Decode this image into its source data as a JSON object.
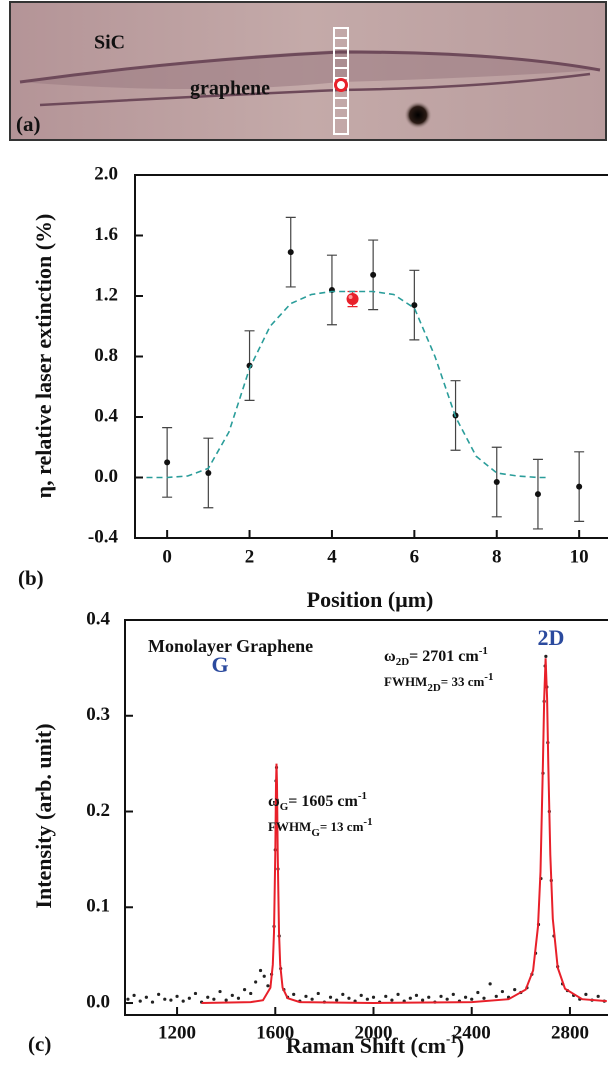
{
  "panel_a": {
    "labels": [
      "SiC",
      "graphene"
    ],
    "tag": "(a)"
  },
  "chart_data": [
    {
      "type": "scatter",
      "panel_label": "(b)",
      "x_label": "Position (μm)",
      "y_label": "η, relative laser extinction (%)",
      "xlim": [
        -0.78,
        10.7
      ],
      "xticks": [
        0,
        2,
        4,
        6,
        8,
        10
      ],
      "ylim": [
        -0.4,
        2.0
      ],
      "yticks": [
        -0.4,
        {
          "value": 0,
          "label": "0.0"
        },
        0.4,
        0.8,
        1.2,
        1.6,
        {
          "value": 2,
          "label": "2.0"
        }
      ],
      "series": [
        {
          "mode": "markers",
          "color": "#111111",
          "x": [
            0,
            1,
            2,
            3,
            4,
            5,
            6,
            7,
            8,
            9,
            10
          ],
          "values": [
            0.1,
            0.03,
            0.74,
            1.49,
            1.24,
            1.34,
            1.14,
            0.41,
            -0.03,
            -0.11,
            -0.06
          ],
          "errors": [
            0.23,
            0.23,
            0.23,
            0.23,
            0.23,
            0.23,
            0.23,
            0.23,
            0.23,
            0.23,
            0.23
          ]
        },
        {
          "mode": "markers",
          "color": "#e8202a",
          "x": [
            4.5
          ],
          "values": [
            1.18
          ],
          "errors": [
            0.05
          ]
        },
        {
          "mode": "dashed-line",
          "color": "#2a9d9a",
          "x": [
            -0.5,
            0,
            0.5,
            1,
            1.5,
            2,
            2.5,
            3,
            3.5,
            4,
            4.5,
            5,
            5.5,
            6,
            6.5,
            7,
            7.5,
            8,
            8.5,
            9,
            9.2
          ],
          "values": [
            0,
            0,
            0.01,
            0.06,
            0.3,
            0.72,
            1.0,
            1.15,
            1.21,
            1.23,
            1.23,
            1.23,
            1.21,
            1.12,
            0.8,
            0.4,
            0.14,
            0.03,
            0.01,
            0,
            0
          ]
        }
      ]
    },
    {
      "type": "scatter",
      "panel_label": "(c)",
      "x_label": [
        "Raman Shift (cm",
        "-1",
        ")"
      ],
      "y_label": "Intensity  (arb. unit)",
      "xlim": [
        988,
        2955
      ],
      "xticks": [
        1200,
        1600,
        2000,
        2400,
        2800
      ],
      "ylim": [
        -0.0125,
        0.4
      ],
      "yticks": [
        {
          "value": 0,
          "label": "0.0"
        },
        0.1,
        0.2,
        0.3,
        0.4
      ],
      "annotations": [
        {
          "parts": [
            "Monolayer Graphene"
          ]
        },
        {
          "parts": [
            "G"
          ]
        },
        {
          "parts": [
            "2D"
          ]
        },
        {
          "parts": [
            "ω",
            "G",
            "= 1605 cm",
            "-1"
          ]
        },
        {
          "parts": [
            "FWHM",
            "G",
            "= 13 cm",
            "-1"
          ]
        },
        {
          "parts": [
            "ω",
            "2D",
            "= 2701 cm",
            "-1"
          ]
        },
        {
          "parts": [
            "FWHM",
            "2D",
            "= 33 cm",
            "-1"
          ]
        }
      ],
      "series": [
        {
          "mode": "dots",
          "color": "#222222",
          "x": [
            1000,
            1025,
            1050,
            1075,
            1100,
            1125,
            1150,
            1175,
            1200,
            1225,
            1250,
            1275,
            1300,
            1325,
            1350,
            1375,
            1400,
            1425,
            1450,
            1475,
            1500,
            1520,
            1540,
            1555,
            1570,
            1585,
            1595,
            1600,
            1603,
            1605,
            1608,
            1611,
            1616,
            1622,
            1635,
            1650,
            1675,
            1700,
            1725,
            1750,
            1775,
            1800,
            1825,
            1850,
            1875,
            1900,
            1925,
            1950,
            1975,
            2000,
            2025,
            2050,
            2075,
            2100,
            2125,
            2150,
            2175,
            2200,
            2225,
            2250,
            2275,
            2300,
            2325,
            2350,
            2375,
            2400,
            2425,
            2450,
            2475,
            2500,
            2525,
            2550,
            2575,
            2600,
            2625,
            2645,
            2660,
            2672,
            2682,
            2690,
            2695,
            2699,
            2702,
            2706,
            2710,
            2716,
            2724,
            2735,
            2750,
            2770,
            2790,
            2815,
            2840,
            2865,
            2890,
            2915,
            2940
          ],
          "values": [
            0.004,
            0.008,
            0.002,
            0.006,
            0.001,
            0.009,
            0.004,
            0.003,
            0.007,
            0.002,
            0.005,
            0.01,
            0.001,
            0.006,
            0.004,
            0.012,
            0.003,
            0.008,
            0.005,
            0.014,
            0.01,
            0.022,
            0.034,
            0.028,
            0.018,
            0.03,
            0.08,
            0.16,
            0.232,
            0.246,
            0.212,
            0.14,
            0.07,
            0.036,
            0.014,
            0.006,
            0.009,
            0.002,
            0.007,
            0.004,
            0.01,
            0.001,
            0.006,
            0.003,
            0.009,
            0.005,
            0.002,
            0.008,
            0.004,
            0.006,
            0.001,
            0.007,
            0.003,
            0.009,
            0.002,
            0.005,
            0.008,
            0.003,
            0.006,
            0.001,
            0.007,
            0.004,
            0.009,
            0.002,
            0.006,
            0.004,
            0.011,
            0.005,
            0.02,
            0.007,
            0.012,
            0.006,
            0.014,
            0.011,
            0.016,
            0.03,
            0.052,
            0.082,
            0.13,
            0.24,
            0.315,
            0.352,
            0.362,
            0.33,
            0.272,
            0.2,
            0.128,
            0.07,
            0.038,
            0.02,
            0.013,
            0.008,
            0.004,
            0.009,
            0.003,
            0.007,
            0.002
          ]
        },
        {
          "mode": "line",
          "color": "#e8202a",
          "x": [
            1300,
            1500,
            1550,
            1580,
            1590,
            1595,
            1600,
            1603,
            1605,
            1607,
            1610,
            1615,
            1620,
            1630,
            1650,
            1700,
            2000,
            2400,
            2550,
            2620,
            2650,
            2670,
            2680,
            2690,
            2695,
            2701,
            2707,
            2712,
            2720,
            2730,
            2750,
            2780,
            2850,
            2950
          ],
          "values": [
            0,
            0.001,
            0.003,
            0.016,
            0.04,
            0.074,
            0.157,
            0.228,
            0.25,
            0.228,
            0.157,
            0.074,
            0.04,
            0.016,
            0.005,
            0.001,
            0,
            0.001,
            0.004,
            0.014,
            0.034,
            0.08,
            0.137,
            0.249,
            0.318,
            0.36,
            0.318,
            0.249,
            0.155,
            0.088,
            0.037,
            0.015,
            0.004,
            0.002
          ]
        }
      ]
    }
  ]
}
